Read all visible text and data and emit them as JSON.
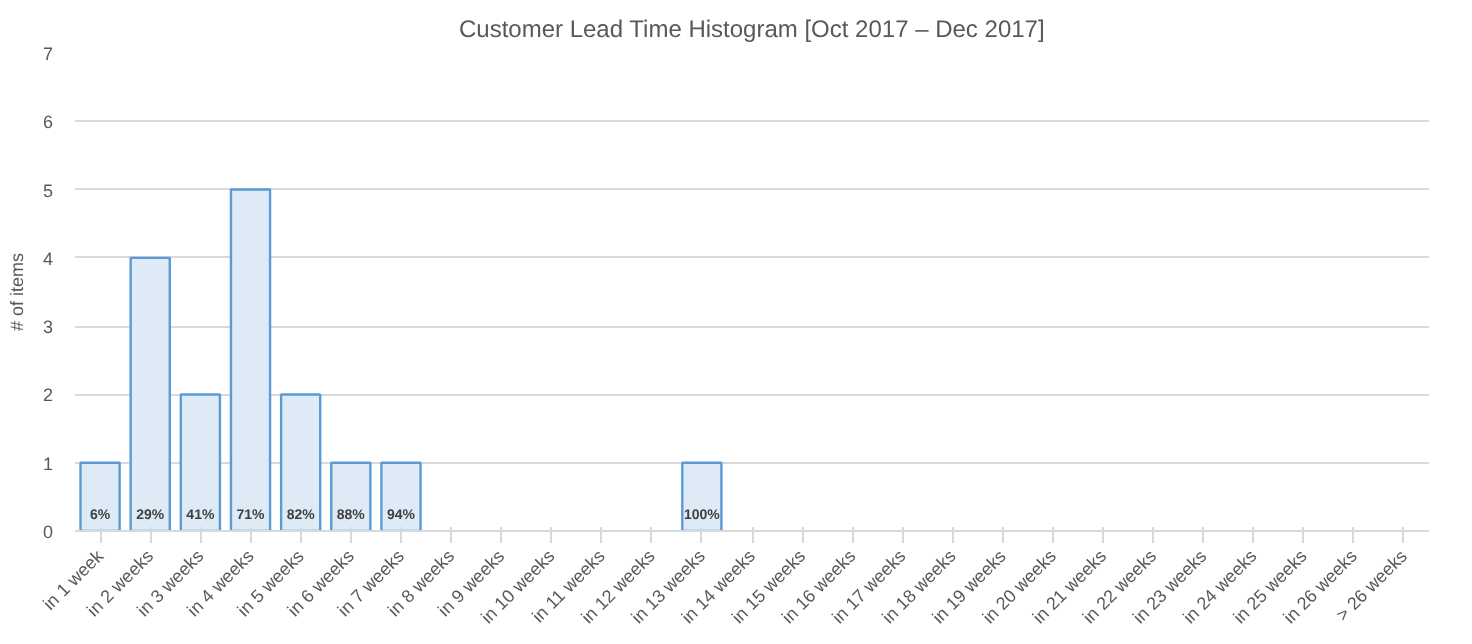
{
  "chart_data": {
    "type": "bar",
    "title": "Customer Lead Time Histogram [Oct 2017 – Dec 2017]",
    "ylabel": "# of items",
    "categories": [
      "in 1 week",
      "in 2 weeks",
      "in 3 weeks",
      "in 4 weeks",
      "in 5 weeks",
      "in 6 weeks",
      "in 7 weeks",
      "in 8 weeks",
      "in 9 weeks",
      "in 10 weeks",
      "in 11 weeks",
      "in 12 weeks",
      "in 13 weeks",
      "in 14 weeks",
      "in 15 weeks",
      "in 16 weeks",
      "in 17 weeks",
      "in 18 weeks",
      "in 19 weeks",
      "in 20 weeks",
      "in 21 weeks",
      "in 22 weeks",
      "in 23 weeks",
      "in 24 weeks",
      "in 25 weeks",
      "in 26 weeks",
      "> 26 weeks"
    ],
    "values": [
      1,
      4,
      2,
      5,
      2,
      1,
      1,
      0,
      0,
      0,
      0,
      0,
      1,
      0,
      0,
      0,
      0,
      0,
      0,
      0,
      0,
      0,
      0,
      0,
      0,
      0,
      0
    ],
    "annotations": [
      {
        "text": "6%",
        "x": "in 1 week",
        "y": 0
      },
      {
        "text": "29%",
        "x": "in 2 weeks",
        "y": 0
      },
      {
        "text": "41%",
        "x": "in 3 weeks",
        "y": 0
      },
      {
        "text": "71%",
        "x": "in 4 weeks",
        "y": 0
      },
      {
        "text": "82%",
        "x": "in 5 weeks",
        "y": 0
      },
      {
        "text": "88%",
        "x": "in 6 weeks",
        "y": 0
      },
      {
        "text": "94%",
        "x": "in 7 weeks",
        "y": 0
      },
      {
        "text": "100%",
        "x": "in 13 weeks",
        "y": 0
      }
    ],
    "color": "#deebf7",
    "ylim": [
      0,
      7
    ],
    "yticks": [
      0,
      1,
      2,
      3,
      4,
      5,
      6,
      7
    ],
    "grid": "y"
  }
}
